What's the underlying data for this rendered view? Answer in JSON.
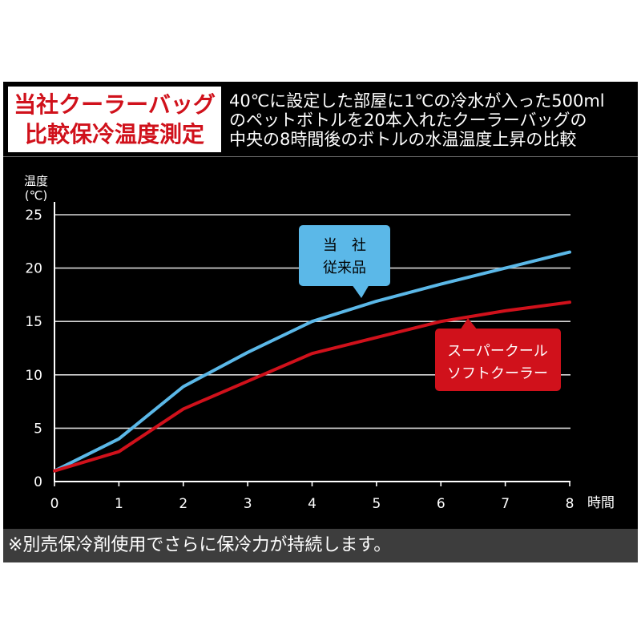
{
  "header": {
    "title_lines": [
      "当社クーラーバッグ",
      "比較保冷温度測定"
    ],
    "description_lines": [
      "40℃に設定した部屋に1℃の冷水が入った500ml",
      "のペットボトルを20本入れたクーラーバッグの",
      "中央の8時間後のボトルの水温温度上昇の比較"
    ]
  },
  "footnote": "※別売保冷剤使用でさらに保冷力が持続します。",
  "colors": {
    "accent_red": "#d0111b",
    "accent_blue": "#5bb8e8",
    "frame": "#000000",
    "footnote_band": "#3d3d3d"
  },
  "chart_data": {
    "type": "line",
    "ylabel": [
      "温度",
      "(℃)"
    ],
    "xlabel": "時間",
    "x": [
      0,
      1,
      2,
      3,
      4,
      5,
      6,
      7,
      8
    ],
    "xlim": [
      0,
      8
    ],
    "ylim": [
      0,
      25
    ],
    "yticks": [
      0,
      5,
      10,
      15,
      20,
      25
    ],
    "grid": true,
    "series": [
      {
        "name": [
          "当　社",
          "従来品"
        ],
        "color": "#5bb8e8",
        "values": [
          1,
          4,
          8.9,
          12.1,
          15,
          16.9,
          18.5,
          20,
          21.5
        ]
      },
      {
        "name": [
          "スーパークール",
          "ソフトクーラー"
        ],
        "color": "#d0111b",
        "values": [
          1,
          2.8,
          6.8,
          9.4,
          12,
          13.5,
          15,
          16,
          16.8
        ]
      }
    ]
  }
}
